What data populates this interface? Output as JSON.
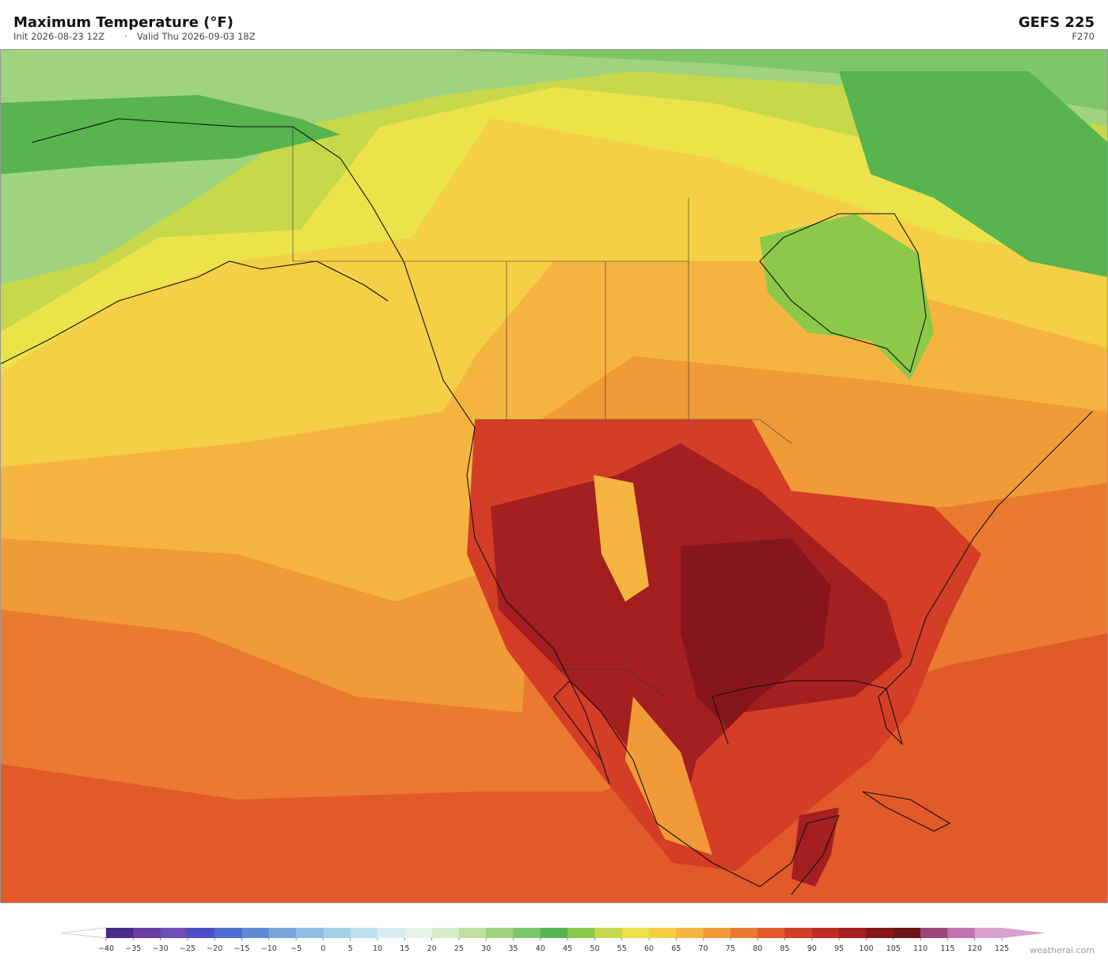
{
  "header": {
    "title": "Maximum Temperature  (°F)",
    "init": "Init 2026-08-23 12Z",
    "separator": "·",
    "valid": "Valid Thu 2026-09-03 18Z",
    "model": "GEFS  225",
    "forecast_hour": "F270"
  },
  "colorbar": {
    "ticks": [
      {
        "value": -40,
        "label": "−40"
      },
      {
        "value": -35,
        "label": "−35"
      },
      {
        "value": -30,
        "label": "−30"
      },
      {
        "value": -25,
        "label": "−25"
      },
      {
        "value": -20,
        "label": "−20"
      },
      {
        "value": -15,
        "label": "−15"
      },
      {
        "value": -10,
        "label": "−10"
      },
      {
        "value": -5,
        "label": "−5"
      },
      0,
      5,
      10,
      15,
      20,
      25,
      30,
      35,
      40,
      45,
      50,
      55,
      60,
      65,
      70,
      75,
      80,
      85,
      90,
      95,
      100,
      105,
      110,
      115,
      120,
      125
    ],
    "colors": [
      "#4b2a8a",
      "#6a3fa0",
      "#6e4fb5",
      "#4a4fc4",
      "#4f6ccf",
      "#5f8ad8",
      "#7aa6dc",
      "#90bde3",
      "#a6d0ea",
      "#bfe0ef",
      "#d7ecf3",
      "#e6f3ea",
      "#d5ecc8",
      "#bfe0a0",
      "#9fd37f",
      "#7ec66a",
      "#57b44f",
      "#8cc84a",
      "#c7d84a",
      "#ece24a",
      "#f5cf45",
      "#f5b43f",
      "#f09a38",
      "#ea7a30",
      "#e2592a",
      "#d43d26",
      "#c02c24",
      "#a31f20",
      "#86161b",
      "#6e1519",
      "#9a4778",
      "#c273ad",
      "#d9a0d0"
    ],
    "under_color": "#ffffff",
    "over_color": "#d9a0d0"
  },
  "footer": {
    "credit": "weatherai.com"
  }
}
